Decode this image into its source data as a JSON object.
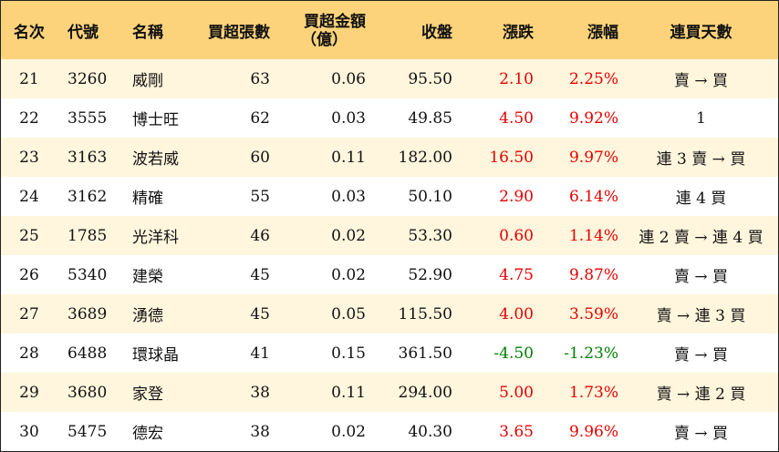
{
  "colors": {
    "header_bg": "#fcd37a",
    "odd_row_bg": "#fff6dd",
    "up": "#e60000",
    "down": "#008000"
  },
  "headers": {
    "rank": "名次",
    "code": "代號",
    "name": "名稱",
    "net_lots": "買超張數",
    "net_amount_line1": "買超金額",
    "net_amount_line2": "（億）",
    "close": "收盤",
    "change": "漲跌",
    "change_pct": "漲幅",
    "streak": "連買天數"
  },
  "rows": [
    {
      "rank": "21",
      "code": "3260",
      "name": "威剛",
      "net_lots": "63",
      "net_amount": "0.06",
      "close": "95.50",
      "change": "2.10",
      "change_pct": "2.25%",
      "dir": "up",
      "streak": "賣 → 買"
    },
    {
      "rank": "22",
      "code": "3555",
      "name": "博士旺",
      "net_lots": "62",
      "net_amount": "0.03",
      "close": "49.85",
      "change": "4.50",
      "change_pct": "9.92%",
      "dir": "up",
      "streak": "1"
    },
    {
      "rank": "23",
      "code": "3163",
      "name": "波若威",
      "net_lots": "60",
      "net_amount": "0.11",
      "close": "182.00",
      "change": "16.50",
      "change_pct": "9.97%",
      "dir": "up",
      "streak": "連 3 賣 → 買"
    },
    {
      "rank": "24",
      "code": "3162",
      "name": "精確",
      "net_lots": "55",
      "net_amount": "0.03",
      "close": "50.10",
      "change": "2.90",
      "change_pct": "6.14%",
      "dir": "up",
      "streak": "連 4 買"
    },
    {
      "rank": "25",
      "code": "1785",
      "name": "光洋科",
      "net_lots": "46",
      "net_amount": "0.02",
      "close": "53.30",
      "change": "0.60",
      "change_pct": "1.14%",
      "dir": "up",
      "streak": "連 2 賣 → 連 4 買"
    },
    {
      "rank": "26",
      "code": "5340",
      "name": "建榮",
      "net_lots": "45",
      "net_amount": "0.02",
      "close": "52.90",
      "change": "4.75",
      "change_pct": "9.87%",
      "dir": "up",
      "streak": "賣 → 買"
    },
    {
      "rank": "27",
      "code": "3689",
      "name": "湧德",
      "net_lots": "45",
      "net_amount": "0.05",
      "close": "115.50",
      "change": "4.00",
      "change_pct": "3.59%",
      "dir": "up",
      "streak": "賣 → 連 3 買"
    },
    {
      "rank": "28",
      "code": "6488",
      "name": "環球晶",
      "net_lots": "41",
      "net_amount": "0.15",
      "close": "361.50",
      "change": "-4.50",
      "change_pct": "-1.23%",
      "dir": "down",
      "streak": "賣 → 買"
    },
    {
      "rank": "29",
      "code": "3680",
      "name": "家登",
      "net_lots": "38",
      "net_amount": "0.11",
      "close": "294.00",
      "change": "5.00",
      "change_pct": "1.73%",
      "dir": "up",
      "streak": "賣 → 連 2 買"
    },
    {
      "rank": "30",
      "code": "5475",
      "name": "德宏",
      "net_lots": "38",
      "net_amount": "0.02",
      "close": "40.30",
      "change": "3.65",
      "change_pct": "9.96%",
      "dir": "up",
      "streak": "賣 → 買"
    }
  ]
}
